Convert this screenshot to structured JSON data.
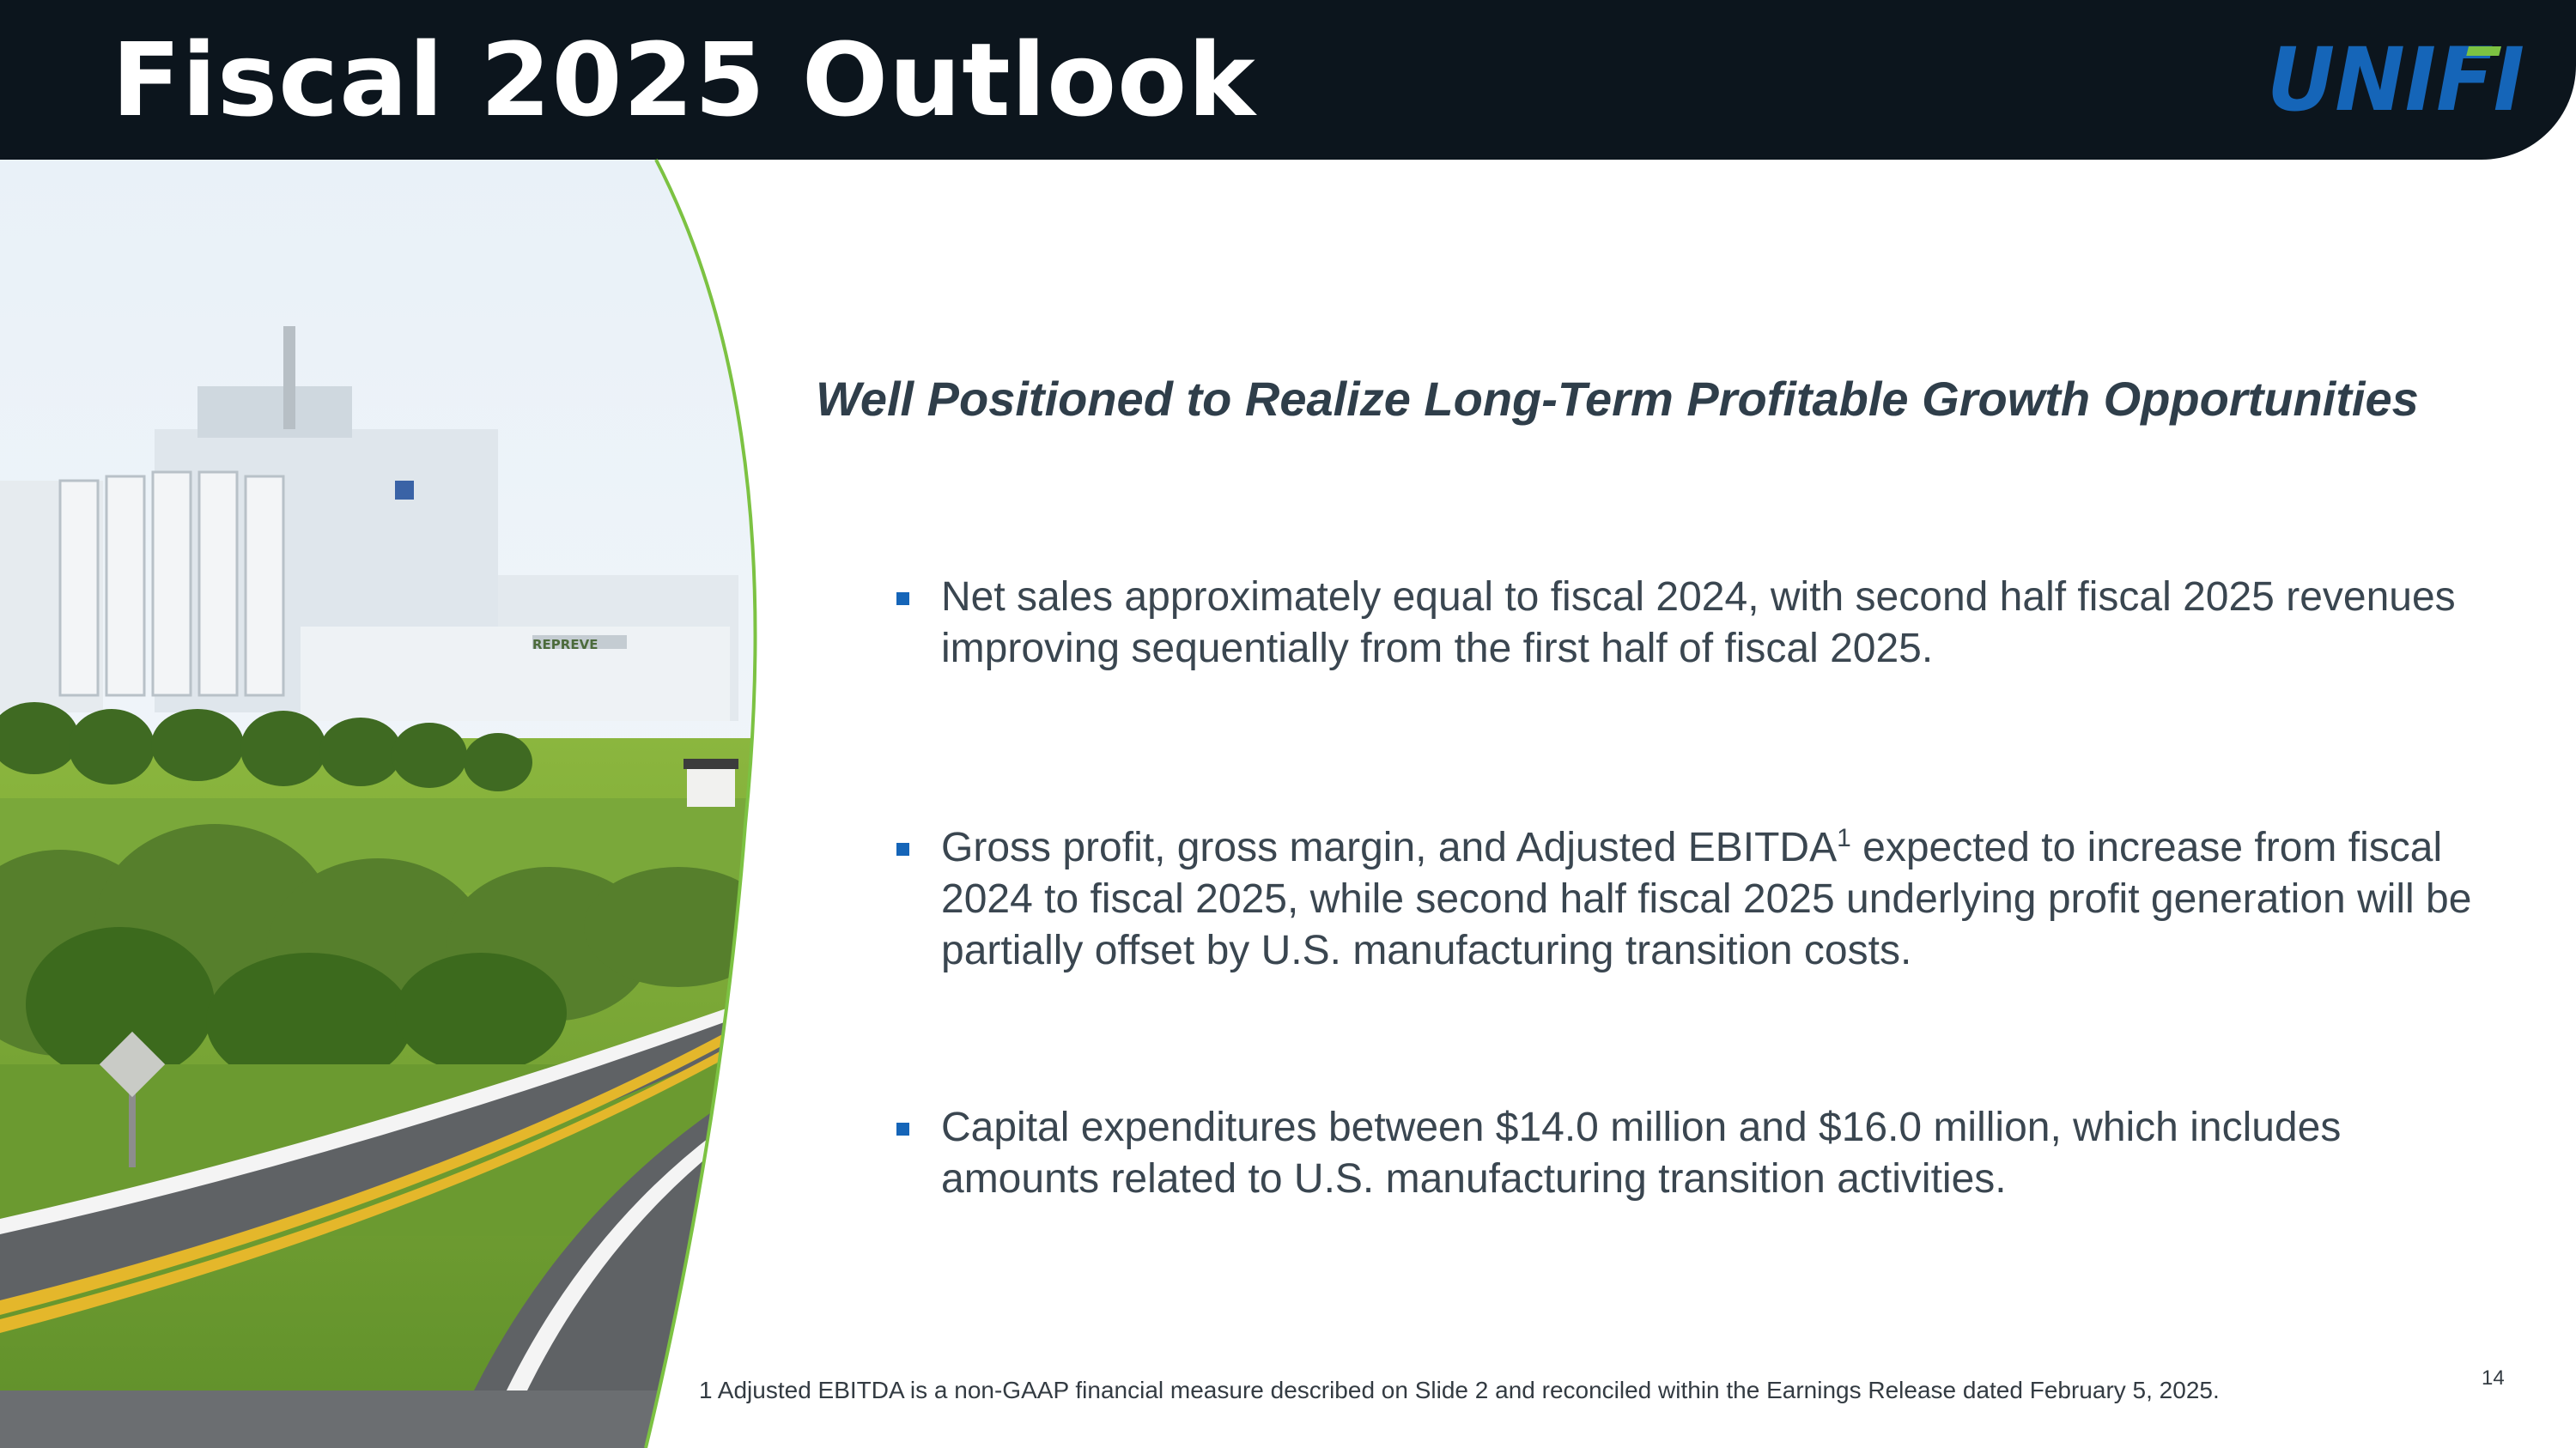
{
  "slide": {
    "title": "Fiscal 2025 Outlook",
    "logo_text": "UNIFI",
    "subtitle": "Well Positioned to Realize Long-Term Profitable Growth Opportunities",
    "bullets": [
      {
        "text": "Net sales approximately equal to fiscal 2024, with second half fiscal 2025 revenues improving sequentially from the first half of fiscal 2025."
      },
      {
        "text_before": "Gross profit, gross margin, and Adjusted EBITDA",
        "sup": "1",
        "text_after": " expected to increase from fiscal 2024 to fiscal 2025, while second half fiscal 2025 underlying profit generation will be partially offset by U.S. manufacturing transition costs."
      },
      {
        "text": "Capital expenditures between $14.0 million and $16.0 million, which includes amounts related to U.S. manufacturing transition activities."
      }
    ],
    "footnote": "1  Adjusted EBITDA is a non-GAAP financial measure described on Slide 2 and reconciled within the Earnings Release dated February 5, 2025.",
    "page_number": "14",
    "plant_sign_text": "REPREVE"
  },
  "colors": {
    "header_bg": "#0c151d",
    "logo_blue": "#1565b8",
    "logo_green": "#7cc242",
    "accent_green": "#7cc242",
    "bullet_blue": "#1565b8",
    "text_dark": "#3a4650"
  }
}
